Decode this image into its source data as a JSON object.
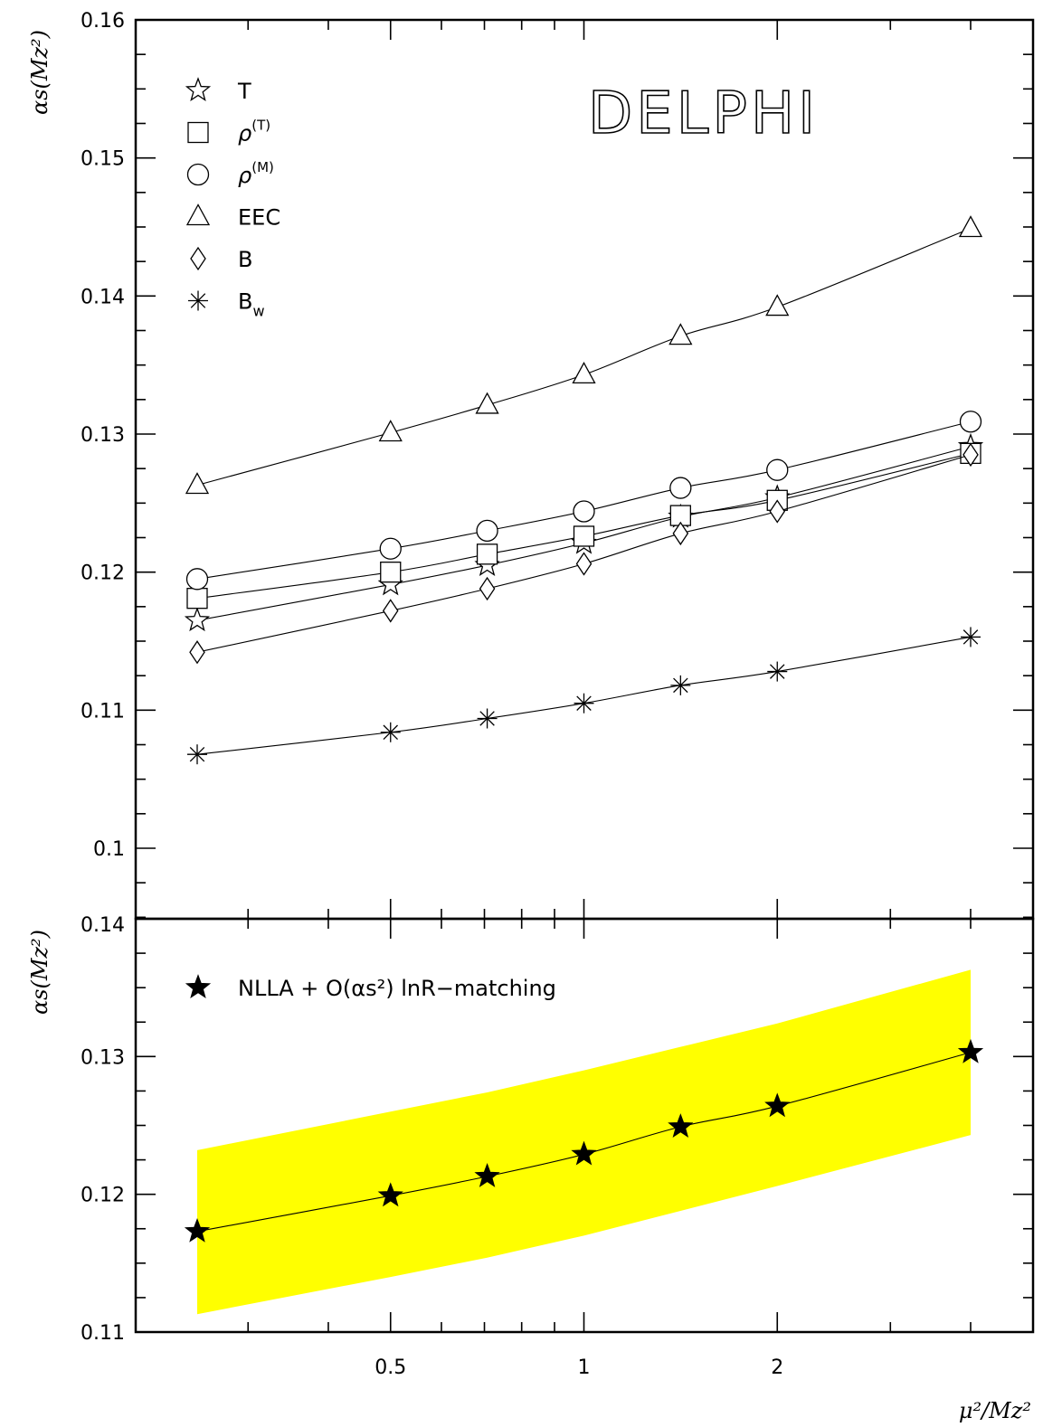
{
  "chart_data": [
    {
      "type": "line",
      "panel": "top",
      "stamp": "DELPHI",
      "ylabel": "αs(Mz²)",
      "ylim": [
        0.1,
        0.16
      ],
      "y_ticks": [
        0.1,
        0.11,
        0.12,
        0.13,
        0.14,
        0.15,
        0.16
      ],
      "y_tick_labels": [
        "0.1",
        "0.11",
        "0.12",
        "0.13",
        "0.14",
        "0.15",
        "0.16"
      ],
      "xscale": "log",
      "x": [
        0.25,
        0.5,
        0.707,
        1.0,
        1.414,
        2.0,
        4.0
      ],
      "legend_position": "top-left",
      "series": [
        {
          "name": "T",
          "marker": "star-open",
          "values": [
            0.1165,
            0.1191,
            0.1205,
            0.1221,
            0.124,
            0.1254,
            0.1291
          ]
        },
        {
          "name": "ρ(T)",
          "marker": "square-open",
          "values": [
            0.1181,
            0.12,
            0.1213,
            0.1226,
            0.1241,
            0.1252,
            0.1286
          ]
        },
        {
          "name": "ρ(M)",
          "marker": "circle-open",
          "values": [
            0.1195,
            0.1217,
            0.123,
            0.1244,
            0.1261,
            0.1274,
            0.1309
          ]
        },
        {
          "name": "EEC",
          "marker": "triangle-open",
          "values": [
            0.1263,
            0.1301,
            0.1321,
            0.1343,
            0.1371,
            0.1392,
            0.1449
          ]
        },
        {
          "name": "B",
          "marker": "diamond-open",
          "values": [
            0.1142,
            0.1172,
            0.1188,
            0.1206,
            0.1228,
            0.1244,
            0.1285
          ]
        },
        {
          "name": "Bw",
          "marker": "asterisk",
          "values": [
            0.1068,
            0.1084,
            0.1094,
            0.1105,
            0.1118,
            0.1128,
            0.1153
          ]
        }
      ]
    },
    {
      "type": "line",
      "panel": "bottom",
      "ylabel": "αs(Mz²)",
      "xlabel": "μ²/Mz²",
      "ylim": [
        0.11,
        0.14
      ],
      "y_ticks": [
        0.11,
        0.12,
        0.13,
        0.14
      ],
      "y_tick_labels": [
        "0.11",
        "0.12",
        "0.13",
        "0.14"
      ],
      "xscale": "log",
      "x_tick_labels": [
        {
          "value": 0.5,
          "label": "0.5"
        },
        {
          "value": 1,
          "label": "1"
        },
        {
          "value": 2,
          "label": "2"
        }
      ],
      "x": [
        0.25,
        0.5,
        0.707,
        1.0,
        1.414,
        2.0,
        4.0
      ],
      "legend_position": "top-left",
      "series": [
        {
          "name": "NLLA + O(αs²) lnR−matching",
          "marker": "star-filled",
          "values": [
            0.1173,
            0.1199,
            0.1213,
            0.1229,
            0.1249,
            0.1264,
            0.1303
          ]
        }
      ],
      "band": {
        "color": "#ffff00",
        "upper": [
          0.1232,
          0.126,
          0.1274,
          0.129,
          0.1307,
          0.1324,
          0.1363
        ],
        "lower": [
          0.1113,
          0.114,
          0.1154,
          0.117,
          0.1188,
          0.1206,
          0.1243
        ]
      }
    }
  ],
  "colors": {
    "band": "#ffff00",
    "ink": "#000000"
  }
}
